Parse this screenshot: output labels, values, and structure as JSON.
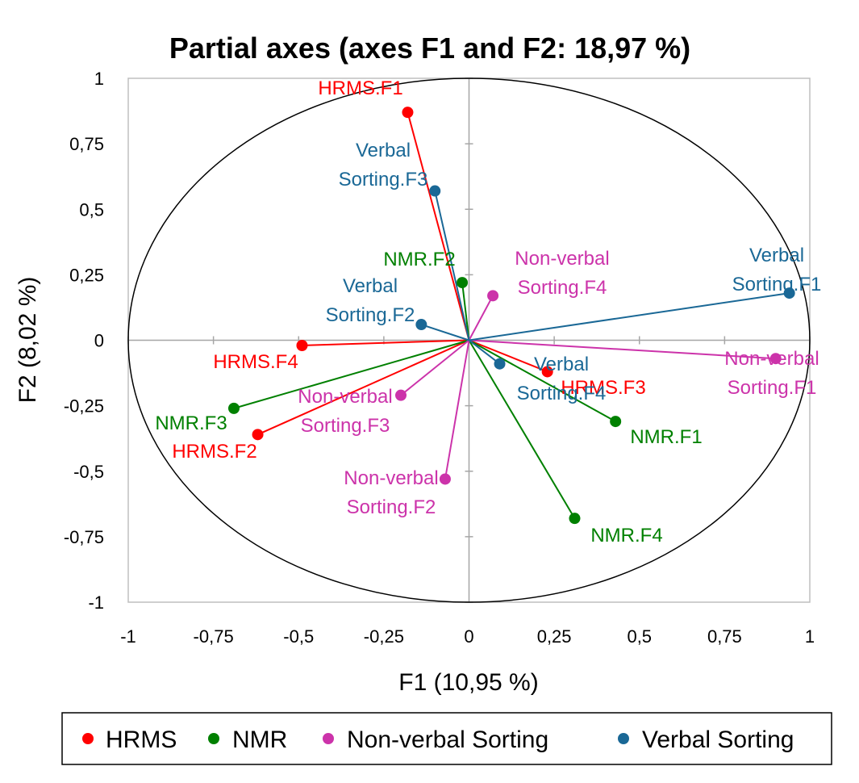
{
  "chart_data": {
    "type": "scatter",
    "title": "Partial axes (axes F1 and F2: 18,97 %)",
    "xlabel": "F1 (10,95 %)",
    "ylabel": "F2 (8,02 %)",
    "xlim": [
      -1,
      1
    ],
    "ylim": [
      -1,
      1
    ],
    "xticks": [
      -1,
      -0.75,
      -0.5,
      -0.25,
      0,
      0.25,
      0.5,
      0.75,
      1
    ],
    "yticks": [
      1,
      0.75,
      0.5,
      0.25,
      0,
      -0.25,
      -0.5,
      -0.75,
      -1
    ],
    "xtick_labels": [
      "-1",
      "-0,75",
      "-0,5",
      "-0,25",
      "0",
      "0,25",
      "0,5",
      "0,75",
      "1"
    ],
    "ytick_labels": [
      "1",
      "0,75",
      "0,5",
      "0,25",
      "0",
      "-0,25",
      "-0,5",
      "-0,75",
      "-1"
    ],
    "grid": false,
    "unit_circle": true,
    "legend": "bottom",
    "series": [
      {
        "name": "HRMS",
        "color": "#ff0000",
        "points": [
          {
            "label": [
              "HRMS.F1"
            ],
            "x": -0.18,
            "y": 0.87
          },
          {
            "label": [
              "HRMS.F2"
            ],
            "x": -0.62,
            "y": -0.36
          },
          {
            "label": [
              "HRMS.F3"
            ],
            "x": 0.23,
            "y": -0.12
          },
          {
            "label": [
              "HRMS.F4"
            ],
            "x": -0.49,
            "y": -0.02
          }
        ]
      },
      {
        "name": "NMR",
        "color": "#008000",
        "points": [
          {
            "label": [
              "NMR.F1"
            ],
            "x": 0.43,
            "y": -0.31
          },
          {
            "label": [
              "NMR.F2"
            ],
            "x": -0.02,
            "y": 0.22
          },
          {
            "label": [
              "NMR.F3"
            ],
            "x": -0.69,
            "y": -0.26
          },
          {
            "label": [
              "NMR.F4"
            ],
            "x": 0.31,
            "y": -0.68
          }
        ]
      },
      {
        "name": "Non-verbal Sorting",
        "color": "#cc33aa",
        "points": [
          {
            "label": [
              "Non-verbal",
              "Sorting.F1"
            ],
            "x": 0.9,
            "y": -0.07
          },
          {
            "label": [
              "Non-verbal",
              "Sorting.F2"
            ],
            "x": -0.07,
            "y": -0.53
          },
          {
            "label": [
              "Non-verbal",
              "Sorting.F3"
            ],
            "x": -0.2,
            "y": -0.21
          },
          {
            "label": [
              "Non-verbal",
              "Sorting.F4"
            ],
            "x": 0.07,
            "y": 0.17
          }
        ]
      },
      {
        "name": "Verbal Sorting",
        "color": "#1a6896",
        "points": [
          {
            "label": [
              "Verbal",
              "Sorting.F1"
            ],
            "x": 0.94,
            "y": 0.18
          },
          {
            "label": [
              "Verbal",
              "Sorting.F2"
            ],
            "x": -0.14,
            "y": 0.06
          },
          {
            "label": [
              "Verbal",
              "Sorting.F3"
            ],
            "x": -0.1,
            "y": 0.57
          },
          {
            "label": [
              "Verbal",
              "Sorting.F4"
            ],
            "x": 0.09,
            "y": -0.09
          }
        ]
      }
    ]
  }
}
